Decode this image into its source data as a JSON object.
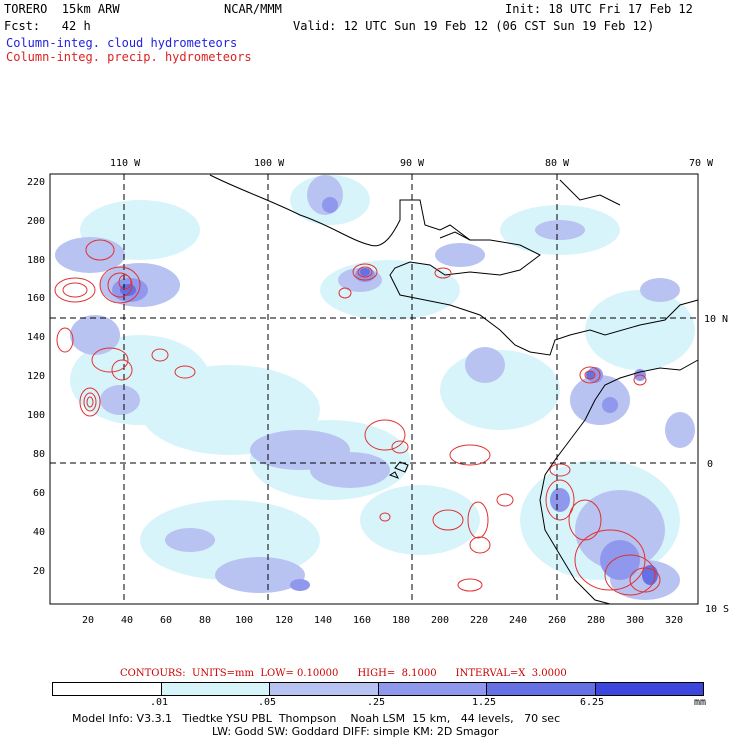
{
  "header": {
    "model": "TORERO  15km ARW",
    "center": "NCAR/MMM",
    "init": "Init: 18 UTC Fri 17 Feb 12",
    "fcst": "Fcst:   42 h",
    "valid": "Valid: 12 UTC Sun 19 Feb 12 (06 CST Sun 19 Feb 12)",
    "field1": "Column-integ. cloud hydrometeors",
    "field2": "Column-integ. precip. hydrometeors"
  },
  "map": {
    "lon_labels": [
      "110 W",
      "100 W",
      "90 W",
      "80 W",
      "70 W"
    ],
    "lat_labels": [
      "10 N",
      "0",
      "10 S"
    ],
    "y_ticks": [
      "220",
      "200",
      "180",
      "160",
      "140",
      "120",
      "100",
      "80",
      "60",
      "40",
      "20"
    ],
    "x_ticks": [
      "20",
      "40",
      "60",
      "80",
      "100",
      "120",
      "140",
      "160",
      "180",
      "200",
      "220",
      "240",
      "260",
      "280",
      "300",
      "320"
    ],
    "colors": {
      "fill_lightest": "#d8f4fb",
      "fill_light": "#b8c3f2",
      "fill_mid": "#8f98ec",
      "fill_dark": "#6470e4",
      "contour": "#e03030",
      "coast": "#000000"
    }
  },
  "contours_info": "CONTOURS:  UNITS=mm  LOW= 0.10000      HIGH=  8.1000      INTERVAL=X  3.0000",
  "legend": {
    "labels": [
      ".01",
      ".05",
      ".25",
      "1.25",
      "6.25",
      "mm"
    ],
    "colors": [
      "#ffffff",
      "#d8f4fb",
      "#b8c3f2",
      "#8f98ec",
      "#6470e4",
      "#3c46dc",
      "#1a1ae6"
    ]
  },
  "footer": {
    "line1": "Model Info: V3.3.1   Tiedtke YSU PBL  Thompson    Noah LSM  15 km,   44 levels,   70 sec",
    "line2": "LW: Godd SW: Goddard DIFF: simple KM: 2D Smagor"
  }
}
